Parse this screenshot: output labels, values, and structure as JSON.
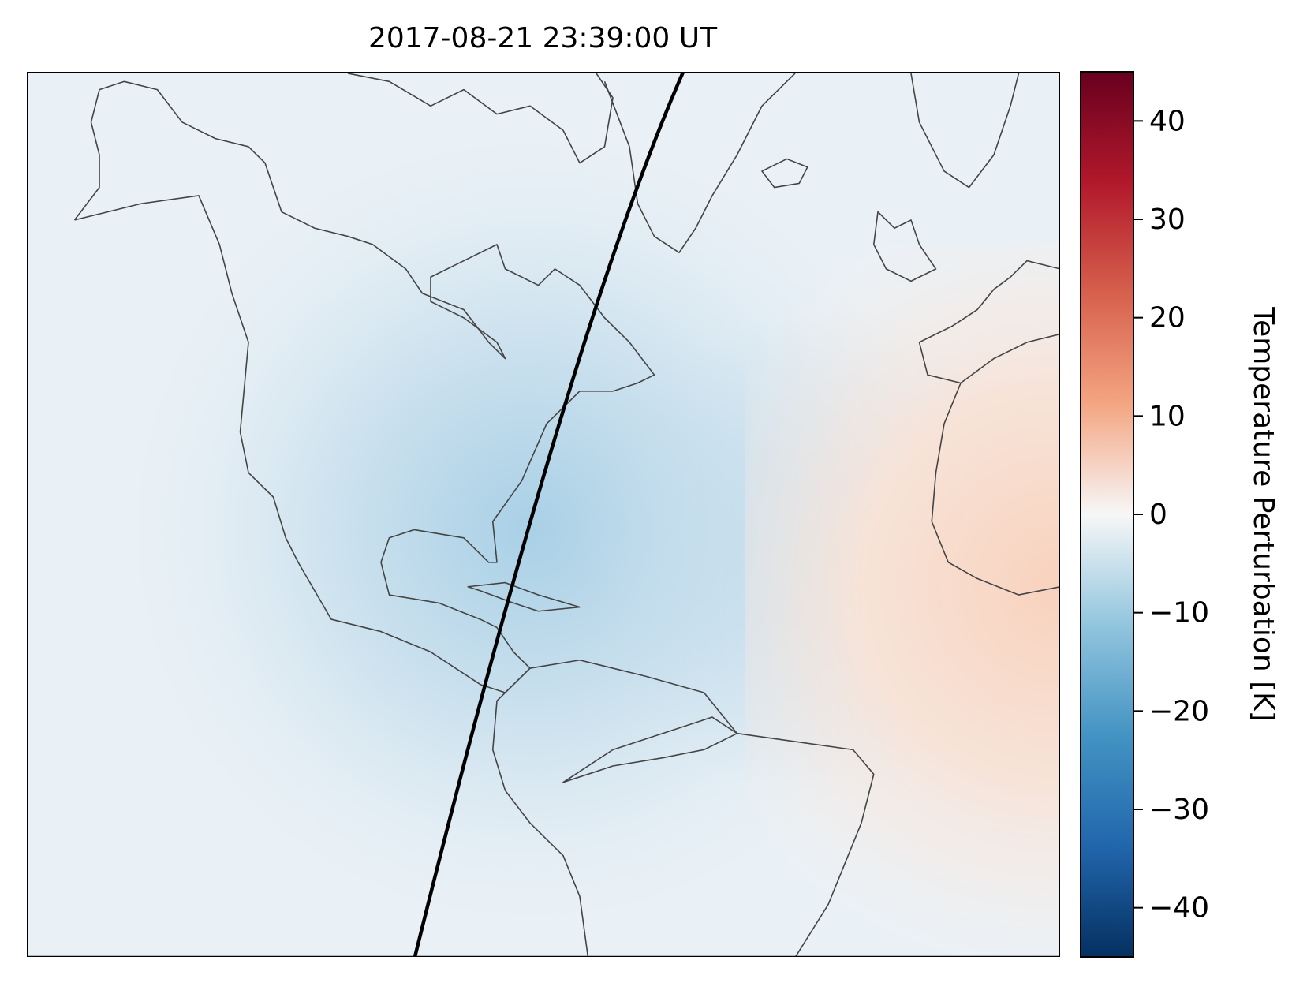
{
  "title": "2017-08-21 23:39:00 UT",
  "colorbar": {
    "label": "Temperature Perturbation [K]",
    "colormap": "RdBu_r",
    "lim": [
      -45,
      45
    ],
    "ticks": [
      {
        "value": -40,
        "label": "−40"
      },
      {
        "value": -30,
        "label": "−30"
      },
      {
        "value": -20,
        "label": "−20"
      },
      {
        "value": -10,
        "label": "−10"
      },
      0,
      10,
      20,
      30,
      40
    ]
  }
}
